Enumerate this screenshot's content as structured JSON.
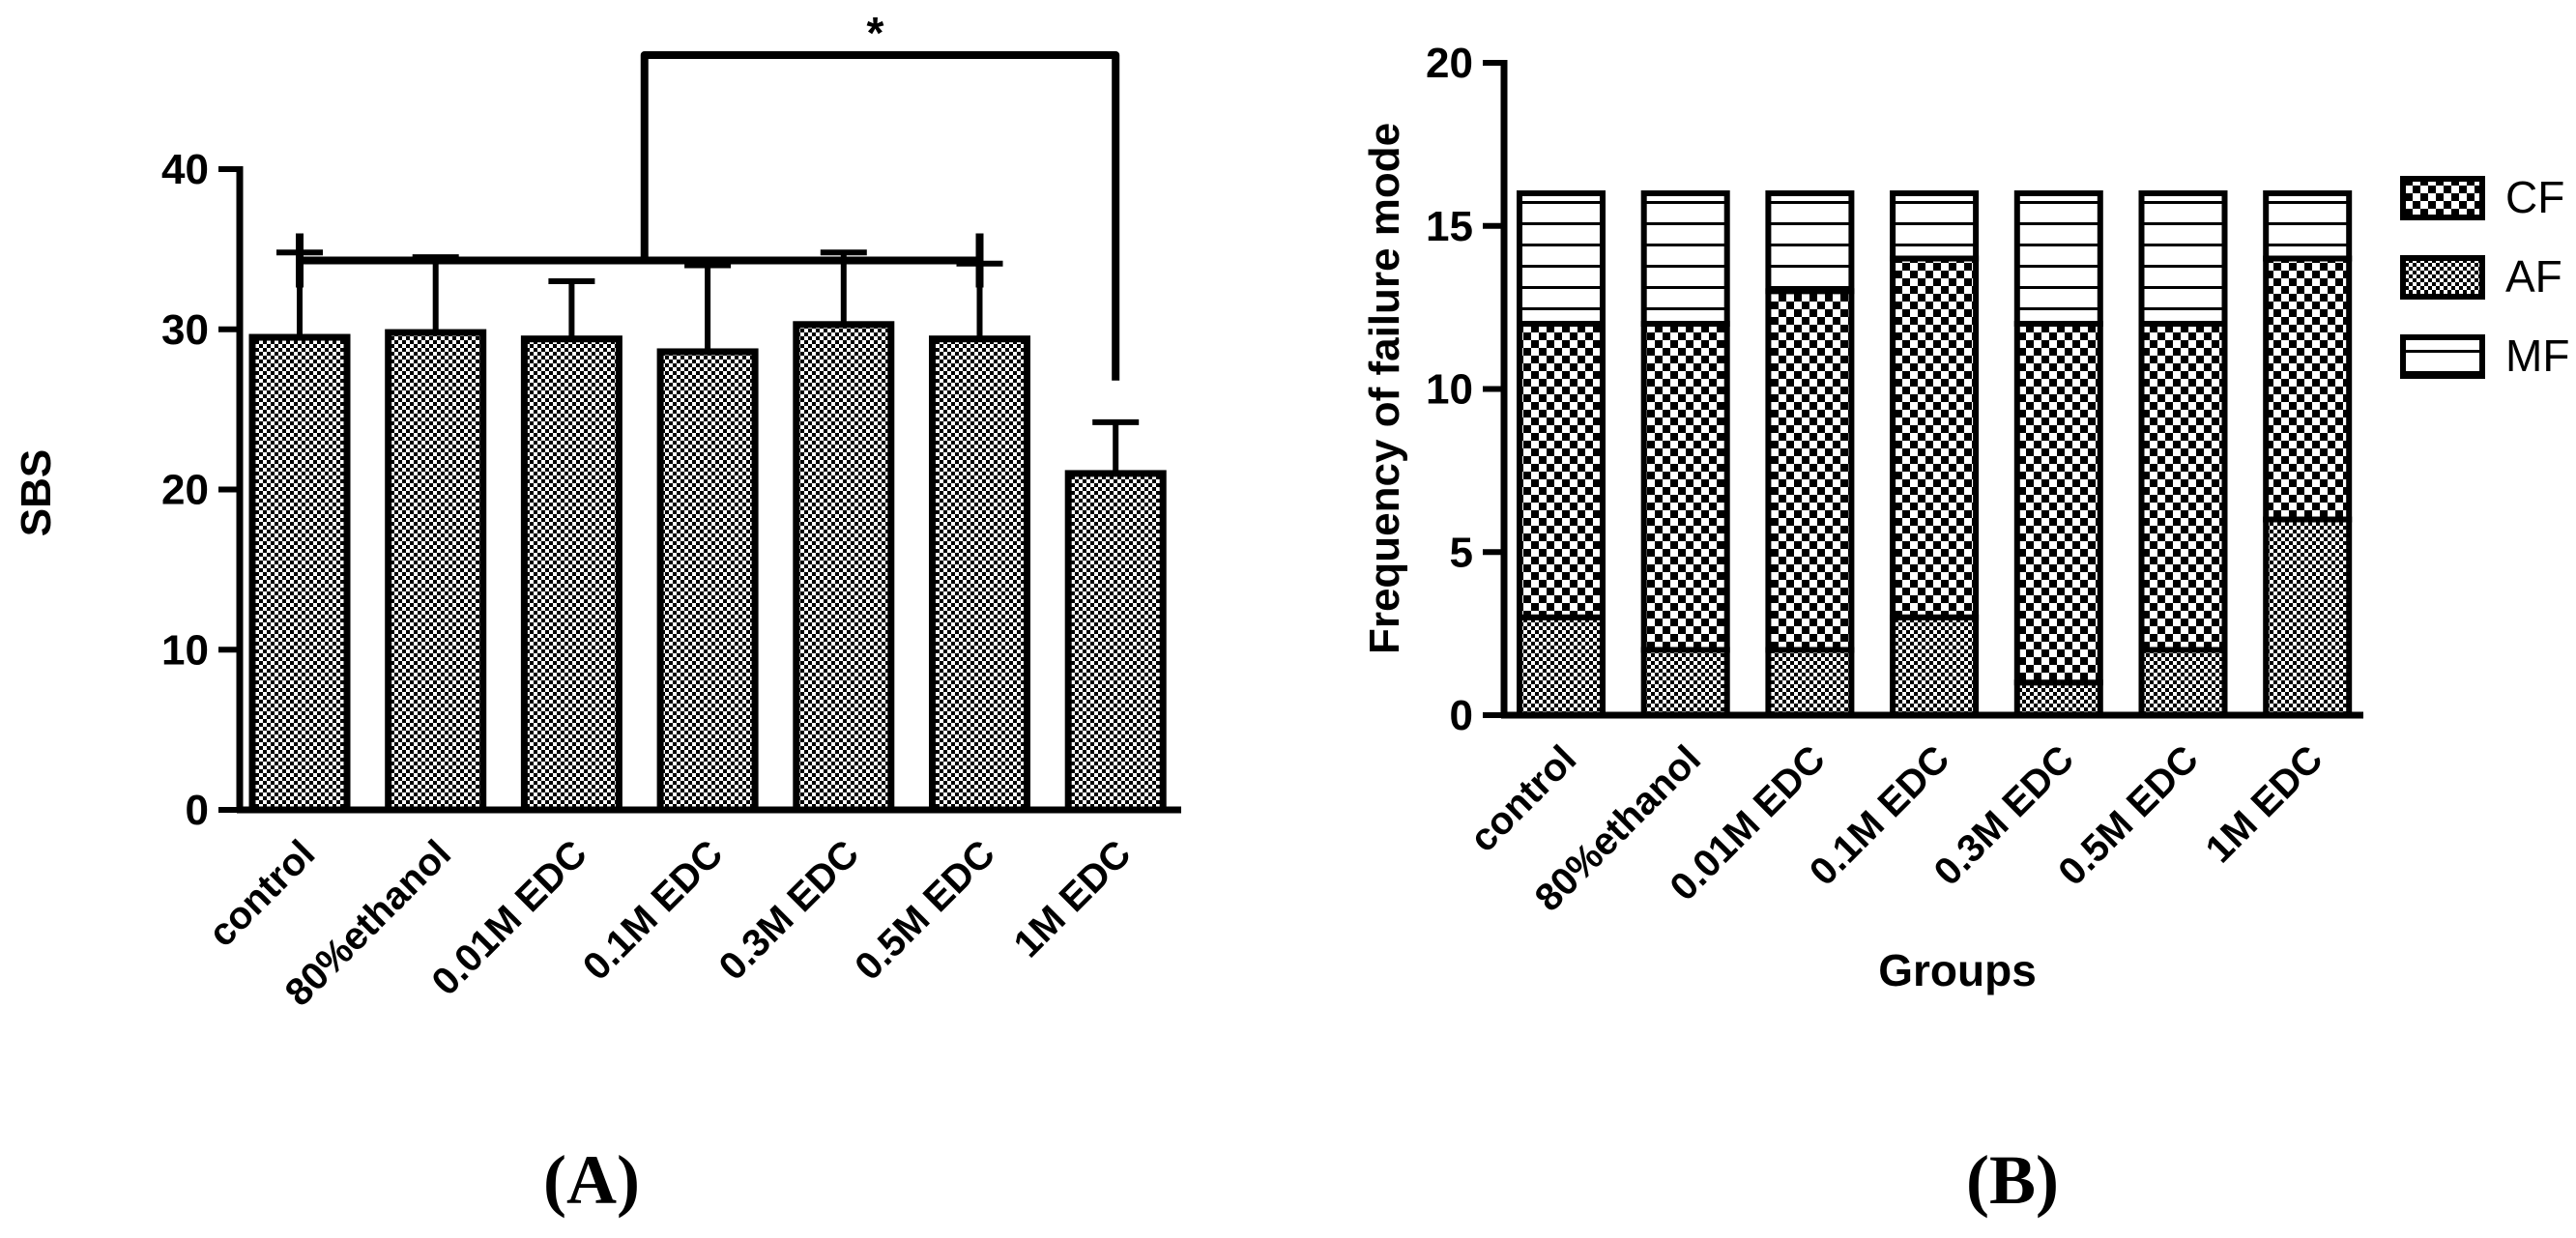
{
  "chart_data": [
    {
      "type": "bar",
      "panel_label": "(A)",
      "title": "",
      "xlabel": "",
      "ylabel": "SBS",
      "ylim": [
        0,
        40
      ],
      "yticks": [
        "0",
        "10",
        "20",
        "30",
        "40"
      ],
      "categories": [
        "control",
        "80%ethanol",
        "0.01M EDC",
        "0.1M EDC",
        "0.3M EDC",
        "0.5M EDC",
        "1M EDC"
      ],
      "values": [
        29.5,
        29.8,
        29.4,
        28.6,
        30.3,
        29.4,
        21.0
      ],
      "errors": [
        5.3,
        4.7,
        3.6,
        5.4,
        4.5,
        4.7,
        3.2
      ],
      "significance": {
        "symbol": "*",
        "from_group": "control–0.5M EDC",
        "to": "1M EDC"
      }
    },
    {
      "type": "bar",
      "stacked": true,
      "panel_label": "(B)",
      "title": "",
      "xlabel": "Groups",
      "ylabel": "Frequency of failure mode",
      "ylim": [
        0,
        20
      ],
      "yticks": [
        "0",
        "5",
        "10",
        "15",
        "20"
      ],
      "categories": [
        "control",
        "80%ethanol",
        "0.01M EDC",
        "0.1M EDC",
        "0.3M EDC",
        "0.5M EDC",
        "1M EDC"
      ],
      "series": [
        {
          "name": "AF",
          "values": [
            3,
            2,
            2,
            3,
            1,
            2,
            6
          ]
        },
        {
          "name": "CF",
          "values": [
            9,
            10,
            11,
            11,
            11,
            10,
            8
          ]
        },
        {
          "name": "MF",
          "values": [
            4,
            4,
            3,
            2,
            4,
            4,
            2
          ]
        }
      ],
      "legend": {
        "position": "right",
        "order": [
          "CF",
          "AF",
          "MF"
        ]
      }
    }
  ]
}
